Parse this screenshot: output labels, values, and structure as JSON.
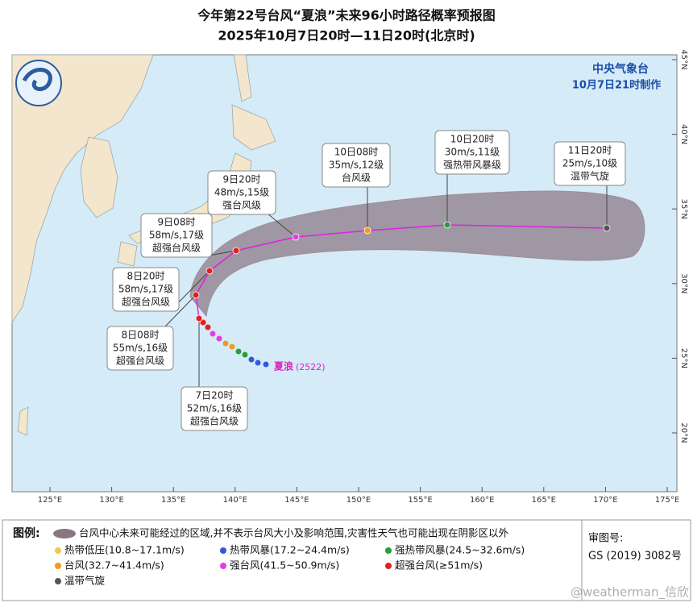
{
  "title": {
    "line1": "今年第22号台风“夏浪”未来96小时路径概率预报图",
    "line2": "2025年10月7日20时—11日20时(北京时)"
  },
  "agency": {
    "name": "中央气象台",
    "made": "10月7日21时制作"
  },
  "forecasts": [
    {
      "time": "7日20时",
      "wind": "52m/s,16级",
      "level": "超强台风级"
    },
    {
      "time": "8日08时",
      "wind": "55m/s,16级",
      "level": "超强台风级"
    },
    {
      "time": "8日20时",
      "wind": "58m/s,17级",
      "level": "超强台风级"
    },
    {
      "time": "9日08时",
      "wind": "58m/s,17级",
      "level": "超强台风级"
    },
    {
      "time": "9日20时",
      "wind": "48m/s,15级",
      "level": "强台风级"
    },
    {
      "time": "10日08时",
      "wind": "35m/s,12级",
      "level": "台风级"
    },
    {
      "time": "10日20时",
      "wind": "30m/s,11级",
      "level": "强热带风暴级"
    },
    {
      "time": "11日20时",
      "wind": "25m/s,10级",
      "level": "温带气旋"
    }
  ],
  "typhoon_label": {
    "name": "夏浪",
    "code": "(2522)"
  },
  "longitude_labels": [
    "125°E",
    "130°E",
    "135°E",
    "140°E",
    "145°E",
    "150°E",
    "155°E",
    "160°E",
    "165°E",
    "170°E",
    "175°E"
  ],
  "latitude_labels": [
    "20°N",
    "25°N",
    "30°N",
    "35°N",
    "40°N",
    "45°N"
  ],
  "legend": {
    "title": "图例:",
    "cone": "台风中心未来可能经过的区域,并不表示台风大小及影响范围,灾害性天气也可能出现在阴影区以外",
    "items": [
      {
        "label": "热带低压(10.8~17.1m/s)",
        "color": "#f2c94c"
      },
      {
        "label": "热带风暴(17.2~24.4m/s)",
        "color": "#2f5bd8"
      },
      {
        "label": "强热带风暴(24.5~32.6m/s)",
        "color": "#2e9b3a"
      },
      {
        "label": "台风(32.7~41.4m/s)",
        "color": "#f39a1e"
      },
      {
        "label": "强台风(41.5~50.9m/s)",
        "color": "#e040e0"
      },
      {
        "label": "超强台风(≥51m/s)",
        "color": "#e22020"
      },
      {
        "label": "温带气旋",
        "color": "#555555"
      }
    ]
  },
  "review": {
    "label": "审图号:",
    "number": "GS (2019) 3082号"
  },
  "watermark": "@weatherman_信欣"
}
